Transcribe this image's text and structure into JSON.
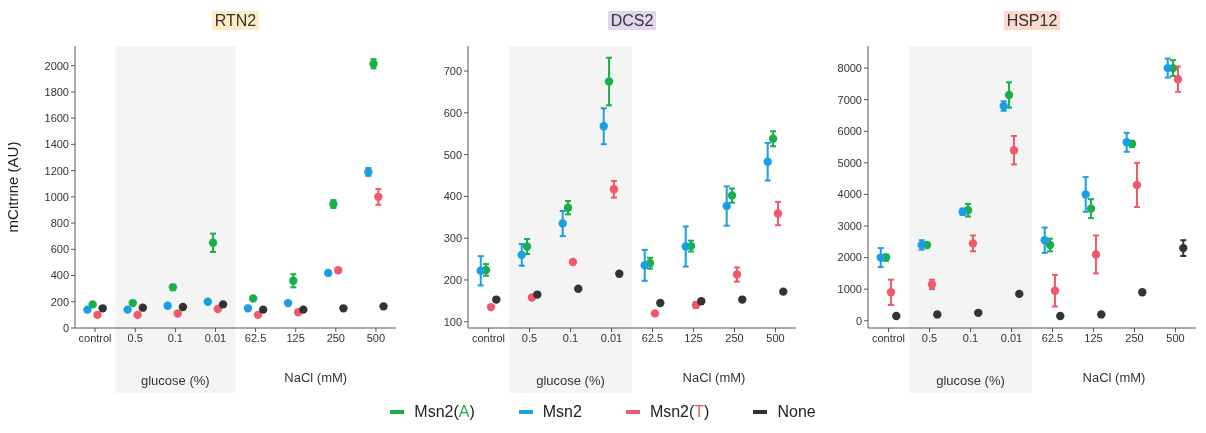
{
  "chart_data": [
    {
      "type": "scatter",
      "title": "RTN2",
      "ylabel": "mCitrine (AU)",
      "categories": [
        "control",
        "0.5",
        "0.1",
        "0.01",
        "62.5",
        "125",
        "250",
        "500"
      ],
      "ylim": [
        0,
        2150
      ],
      "yticks": [
        0,
        200,
        400,
        600,
        800,
        1000,
        1200,
        1400,
        1600,
        1800,
        2000
      ],
      "marker": "circle",
      "legend": "bottom",
      "bands": [
        {
          "axis": "x",
          "from": "0.5",
          "to": "0.01",
          "label": "glucose (%)",
          "color": "#f4f4f4"
        }
      ],
      "annotations": [
        "NaCl (mM)"
      ],
      "series": [
        {
          "name": "Msn2(A)",
          "color": "#19b04a",
          "values": [
            180,
            190,
            310,
            650,
            225,
            360,
            945,
            2015
          ],
          "errors": [
            null,
            null,
            20,
            70,
            null,
            50,
            30,
            35
          ]
        },
        {
          "name": "Msn2",
          "color": "#1a9ee6",
          "values": [
            140,
            140,
            170,
            200,
            150,
            190,
            420,
            1190
          ],
          "errors": [
            null,
            null,
            null,
            null,
            null,
            null,
            null,
            30
          ]
        },
        {
          "name": "Msn2(T)",
          "color": "#f0596a",
          "values": [
            100,
            100,
            110,
            145,
            100,
            120,
            440,
            1000
          ],
          "errors": [
            null,
            null,
            null,
            null,
            null,
            null,
            15,
            60
          ]
        },
        {
          "name": "None",
          "color": "#333333",
          "values": [
            150,
            155,
            160,
            180,
            140,
            140,
            150,
            165
          ]
        }
      ]
    },
    {
      "type": "scatter",
      "title": "DCS2",
      "categories": [
        "control",
        "0.5",
        "0.1",
        "0.01",
        "62.5",
        "125",
        "250",
        "500"
      ],
      "ylim": [
        85,
        760
      ],
      "yticks": [
        100,
        200,
        300,
        400,
        500,
        600,
        700
      ],
      "marker": "circle",
      "legend": "bottom",
      "bands": [
        {
          "axis": "x",
          "from": "0.5",
          "to": "0.01",
          "label": "glucose (%)",
          "color": "#f4f4f4"
        }
      ],
      "annotations": [
        "NaCl (mM)"
      ],
      "series": [
        {
          "name": "Msn2(A)",
          "color": "#19b04a",
          "values": [
            224,
            280,
            373,
            675,
            240,
            281,
            402,
            538
          ],
          "errors": [
            14,
            18,
            16,
            57,
            13,
            13,
            17,
            18
          ]
        },
        {
          "name": "Msn2",
          "color": "#1a9ee6",
          "values": [
            222,
            260,
            335,
            568,
            235,
            280,
            377,
            483
          ],
          "errors": [
            35,
            26,
            30,
            43,
            37,
            48,
            47,
            45
          ]
        },
        {
          "name": "Msn2(T)",
          "color": "#f0596a",
          "values": [
            135,
            158,
            243,
            417,
            120,
            140,
            213,
            359
          ],
          "errors": [
            null,
            null,
            5,
            20,
            null,
            7,
            17,
            28
          ]
        },
        {
          "name": "None",
          "color": "#333333",
          "values": [
            153,
            165,
            179,
            215,
            145,
            149,
            153,
            172
          ]
        }
      ]
    },
    {
      "type": "scatter",
      "title": "HSP12",
      "categories": [
        "control",
        "0.5",
        "0.1",
        "0.01",
        "62.5",
        "125",
        "250",
        "500"
      ],
      "ylim": [
        -230,
        8700
      ],
      "yticks": [
        0,
        1000,
        2000,
        3000,
        4000,
        5000,
        6000,
        7000,
        8000
      ],
      "marker": "circle",
      "legend": "bottom",
      "bands": [
        {
          "axis": "x",
          "from": "0.5",
          "to": "0.01",
          "label": "glucose (%)",
          "color": "#f4f4f4"
        }
      ],
      "annotations": [
        "NaCl (mM)"
      ],
      "series": [
        {
          "name": "Msn2(A)",
          "color": "#19b04a",
          "values": [
            2000,
            2400,
            3500,
            7150,
            2400,
            3550,
            5600,
            8000
          ],
          "errors": [
            100,
            50,
            200,
            400,
            200,
            300,
            100,
            250
          ]
        },
        {
          "name": "Msn2",
          "color": "#1a9ee6",
          "values": [
            2000,
            2400,
            3450,
            6800,
            2550,
            4000,
            5650,
            8000
          ],
          "errors": [
            300,
            150,
            100,
            150,
            400,
            550,
            300,
            300
          ]
        },
        {
          "name": "Msn2(T)",
          "color": "#f0596a",
          "values": [
            900,
            1150,
            2450,
            5400,
            950,
            2100,
            4300,
            7650
          ],
          "errors": [
            400,
            150,
            250,
            450,
            500,
            600,
            700,
            400
          ]
        },
        {
          "name": "None",
          "color": "#333333",
          "values": [
            150,
            200,
            250,
            850,
            150,
            200,
            900,
            2300
          ],
          "errors": [
            null,
            null,
            null,
            null,
            null,
            null,
            null,
            250
          ]
        }
      ]
    }
  ]
}
